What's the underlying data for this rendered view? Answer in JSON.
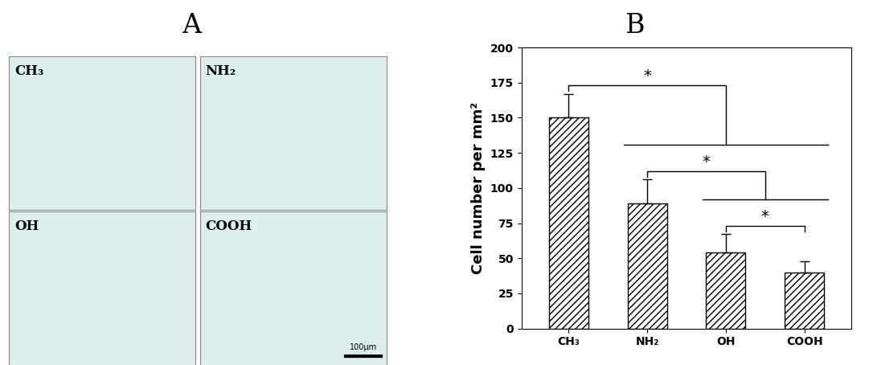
{
  "panel_labels": [
    "A",
    "B"
  ],
  "micrographs": {
    "labels": [
      "CH₃",
      "NH₂",
      "OH",
      "COOH"
    ],
    "scale_bar": "100μm"
  },
  "chart_data": {
    "type": "bar",
    "categories": [
      "CH₃",
      "NH₂",
      "OH",
      "COOH"
    ],
    "values": [
      150,
      89,
      54,
      40
    ],
    "errors": [
      17,
      17,
      13,
      8
    ],
    "color": "#ffffff",
    "y_label": "Cell number per mm²",
    "ylim": [
      0,
      200
    ],
    "yticks": [
      0,
      25,
      50,
      75,
      100,
      125,
      150,
      175,
      200
    ],
    "grid": false,
    "significance": [
      {
        "from": "CH₃",
        "to": [
          "NH₂",
          "OH",
          "COOH"
        ],
        "label": "*"
      },
      {
        "from": "NH₂",
        "to": [
          "OH",
          "COOH"
        ],
        "label": "*"
      },
      {
        "from": "OH",
        "to": [
          "COOH"
        ],
        "label": "*"
      }
    ]
  }
}
